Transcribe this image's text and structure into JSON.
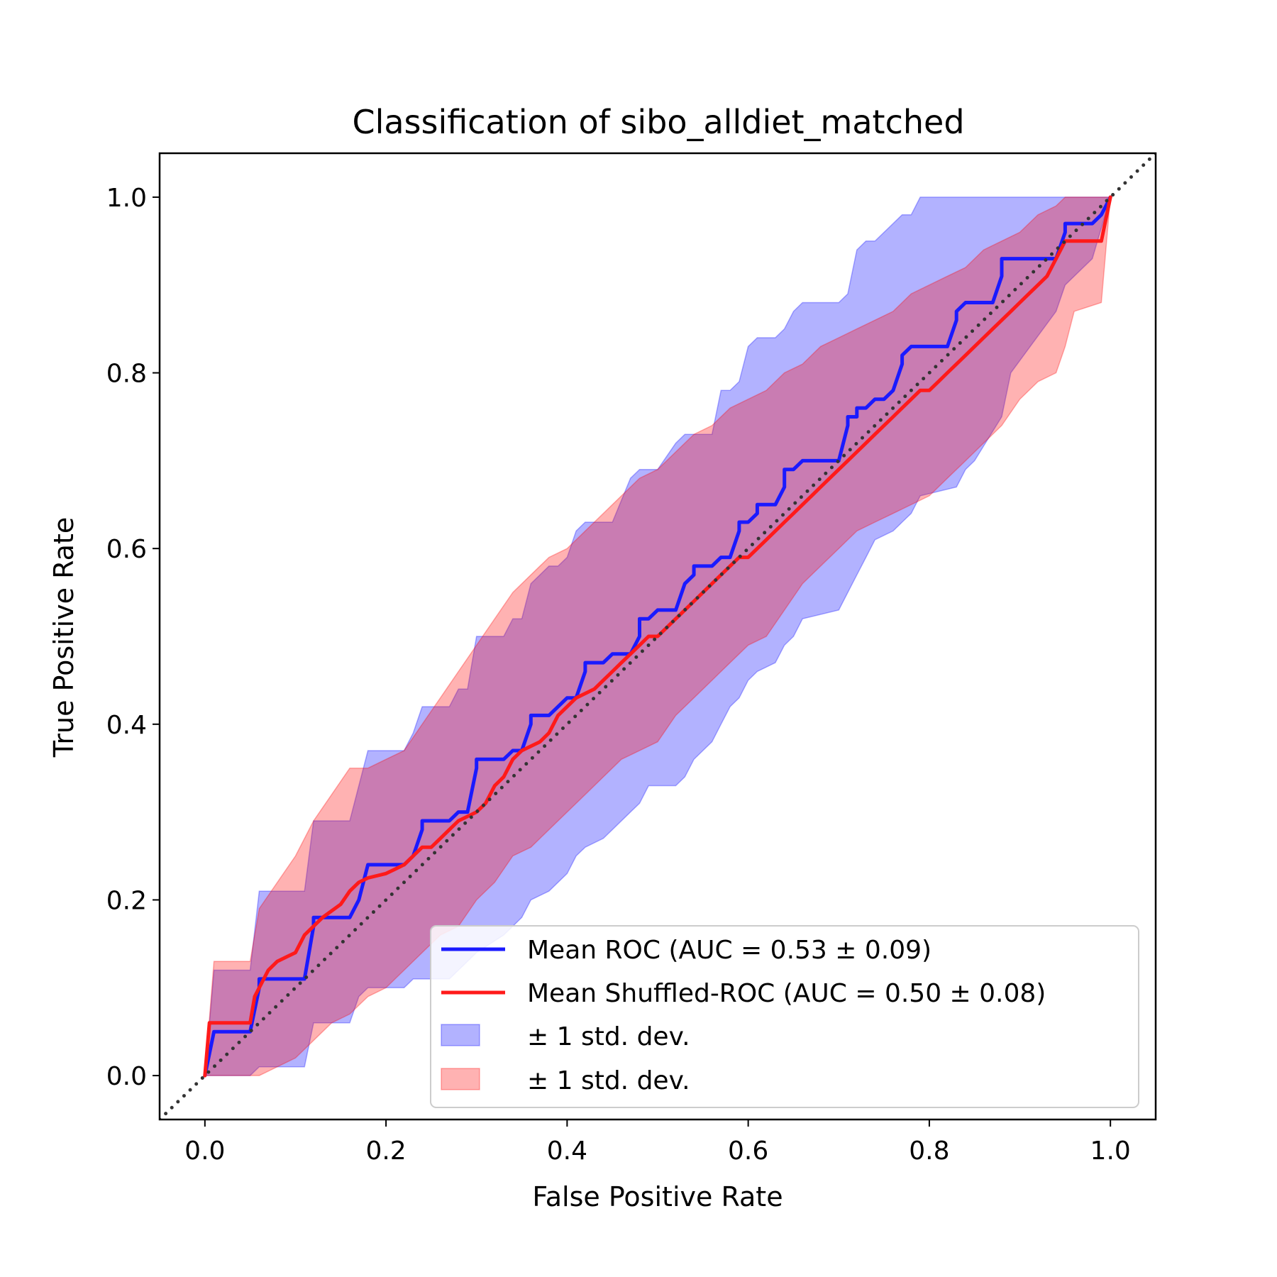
{
  "chart_data": {
    "type": "line",
    "title": "Classification of sibo_alldiet_matched",
    "xlabel": "False Positive Rate",
    "ylabel": "True Positive Rate",
    "xlim": [
      -0.05,
      1.05
    ],
    "ylim": [
      -0.05,
      1.05
    ],
    "xticks": [
      0.0,
      0.2,
      0.4,
      0.6,
      0.8,
      1.0
    ],
    "yticks": [
      0.0,
      0.2,
      0.4,
      0.6,
      0.8,
      1.0
    ],
    "xtick_labels": [
      "0.0",
      "0.2",
      "0.4",
      "0.6",
      "0.8",
      "1.0"
    ],
    "ytick_labels": [
      "0.0",
      "0.2",
      "0.4",
      "0.6",
      "0.8",
      "1.0"
    ],
    "grid": false,
    "legend_position": "lower-right",
    "series": [
      {
        "name": "Mean ROC (AUC = 0.53 ± 0.09)",
        "color": "#1a1aff",
        "x": [
          0,
          0.01,
          0.012,
          0.05,
          0.06,
          0.06,
          0.11,
          0.12,
          0.12,
          0.16,
          0.17,
          0.18,
          0.18,
          0.22,
          0.23,
          0.24,
          0.24,
          0.27,
          0.28,
          0.29,
          0.3,
          0.3,
          0.33,
          0.34,
          0.35,
          0.36,
          0.36,
          0.38,
          0.39,
          0.4,
          0.41,
          0.42,
          0.42,
          0.44,
          0.45,
          0.47,
          0.48,
          0.48,
          0.49,
          0.5,
          0.5,
          0.52,
          0.53,
          0.54,
          0.54,
          0.56,
          0.57,
          0.58,
          0.59,
          0.59,
          0.6,
          0.61,
          0.61,
          0.63,
          0.64,
          0.64,
          0.65,
          0.66,
          0.66,
          0.67,
          0.68,
          0.7,
          0.71,
          0.71,
          0.72,
          0.72,
          0.73,
          0.74,
          0.75,
          0.76,
          0.77,
          0.77,
          0.78,
          0.79,
          0.81,
          0.82,
          0.83,
          0.83,
          0.84,
          0.85,
          0.87,
          0.88,
          0.88,
          0.89,
          0.94,
          0.95,
          0.95,
          0.98,
          0.99,
          1.0
        ],
        "y": [
          0,
          0.05,
          0.05,
          0.05,
          0.1,
          0.11,
          0.11,
          0.17,
          0.18,
          0.18,
          0.2,
          0.24,
          0.24,
          0.24,
          0.25,
          0.28,
          0.29,
          0.29,
          0.3,
          0.3,
          0.35,
          0.36,
          0.36,
          0.37,
          0.37,
          0.4,
          0.41,
          0.41,
          0.42,
          0.43,
          0.43,
          0.46,
          0.47,
          0.47,
          0.48,
          0.48,
          0.5,
          0.52,
          0.52,
          0.53,
          0.53,
          0.53,
          0.56,
          0.57,
          0.58,
          0.58,
          0.59,
          0.59,
          0.62,
          0.63,
          0.63,
          0.64,
          0.65,
          0.65,
          0.67,
          0.69,
          0.69,
          0.7,
          0.7,
          0.7,
          0.7,
          0.7,
          0.74,
          0.75,
          0.75,
          0.76,
          0.76,
          0.77,
          0.77,
          0.78,
          0.81,
          0.82,
          0.83,
          0.83,
          0.83,
          0.83,
          0.86,
          0.87,
          0.88,
          0.88,
          0.88,
          0.91,
          0.93,
          0.93,
          0.93,
          0.96,
          0.97,
          0.97,
          0.98,
          1.0
        ]
      },
      {
        "name": "Mean Shuffled-ROC (AUC = 0.50 ± 0.08)",
        "color": "#ff1a1a",
        "x": [
          0,
          0.005,
          0.01,
          0.05,
          0.055,
          0.06,
          0.065,
          0.07,
          0.08,
          0.09,
          0.1,
          0.11,
          0.12,
          0.13,
          0.15,
          0.16,
          0.17,
          0.18,
          0.2,
          0.21,
          0.22,
          0.24,
          0.25,
          0.26,
          0.27,
          0.28,
          0.3,
          0.31,
          0.32,
          0.33,
          0.34,
          0.35,
          0.37,
          0.38,
          0.39,
          0.4,
          0.41,
          0.43,
          0.44,
          0.45,
          0.46,
          0.47,
          0.48,
          0.49,
          0.5,
          0.51,
          0.52,
          0.53,
          0.54,
          0.55,
          0.56,
          0.57,
          0.58,
          0.59,
          0.6,
          0.61,
          0.62,
          0.63,
          0.64,
          0.65,
          0.66,
          0.67,
          0.68,
          0.69,
          0.7,
          0.71,
          0.72,
          0.73,
          0.74,
          0.75,
          0.76,
          0.77,
          0.78,
          0.79,
          0.8,
          0.81,
          0.82,
          0.83,
          0.84,
          0.85,
          0.86,
          0.87,
          0.88,
          0.89,
          0.9,
          0.91,
          0.92,
          0.93,
          0.94,
          0.95,
          0.96,
          0.97,
          0.99,
          1.0
        ],
        "y": [
          0,
          0.06,
          0.06,
          0.06,
          0.09,
          0.1,
          0.11,
          0.12,
          0.13,
          0.135,
          0.14,
          0.16,
          0.17,
          0.18,
          0.195,
          0.21,
          0.22,
          0.225,
          0.23,
          0.235,
          0.24,
          0.26,
          0.26,
          0.27,
          0.28,
          0.29,
          0.3,
          0.31,
          0.33,
          0.34,
          0.36,
          0.37,
          0.38,
          0.39,
          0.41,
          0.42,
          0.43,
          0.44,
          0.45,
          0.46,
          0.47,
          0.48,
          0.49,
          0.5,
          0.5,
          0.51,
          0.52,
          0.53,
          0.54,
          0.55,
          0.56,
          0.57,
          0.58,
          0.59,
          0.59,
          0.6,
          0.61,
          0.62,
          0.63,
          0.64,
          0.65,
          0.66,
          0.67,
          0.68,
          0.69,
          0.7,
          0.71,
          0.72,
          0.73,
          0.74,
          0.75,
          0.76,
          0.77,
          0.78,
          0.78,
          0.79,
          0.8,
          0.81,
          0.82,
          0.83,
          0.84,
          0.85,
          0.86,
          0.87,
          0.88,
          0.89,
          0.9,
          0.91,
          0.93,
          0.95,
          0.95,
          0.95,
          0.95,
          1.0
        ]
      }
    ],
    "bands": [
      {
        "name": "± 1 std. dev.",
        "color": "#0000ff",
        "x": [
          0,
          0.01,
          0.05,
          0.06,
          0.11,
          0.12,
          0.16,
          0.17,
          0.18,
          0.22,
          0.23,
          0.24,
          0.27,
          0.28,
          0.29,
          0.3,
          0.33,
          0.34,
          0.35,
          0.36,
          0.38,
          0.39,
          0.4,
          0.41,
          0.42,
          0.44,
          0.45,
          0.47,
          0.48,
          0.49,
          0.5,
          0.52,
          0.53,
          0.54,
          0.56,
          0.57,
          0.58,
          0.59,
          0.6,
          0.61,
          0.63,
          0.64,
          0.65,
          0.66,
          0.7,
          0.71,
          0.72,
          0.73,
          0.74,
          0.76,
          0.77,
          0.78,
          0.79,
          0.83,
          0.84,
          0.85,
          0.88,
          0.89,
          0.94,
          0.95,
          0.98,
          1.0
        ],
        "lower": [
          0,
          0,
          0,
          0.01,
          0.01,
          0.06,
          0.06,
          0.09,
          0.1,
          0.1,
          0.11,
          0.11,
          0.11,
          0.12,
          0.13,
          0.14,
          0.16,
          0.17,
          0.18,
          0.2,
          0.21,
          0.22,
          0.23,
          0.25,
          0.26,
          0.27,
          0.28,
          0.3,
          0.31,
          0.33,
          0.33,
          0.33,
          0.34,
          0.36,
          0.38,
          0.4,
          0.42,
          0.43,
          0.45,
          0.46,
          0.47,
          0.49,
          0.5,
          0.52,
          0.53,
          0.55,
          0.57,
          0.59,
          0.61,
          0.62,
          0.63,
          0.64,
          0.66,
          0.67,
          0.69,
          0.7,
          0.75,
          0.8,
          0.87,
          0.9,
          0.93,
          1.0
        ],
        "upper": [
          0,
          0.12,
          0.12,
          0.21,
          0.21,
          0.29,
          0.29,
          0.33,
          0.37,
          0.37,
          0.39,
          0.42,
          0.42,
          0.44,
          0.44,
          0.5,
          0.5,
          0.52,
          0.52,
          0.56,
          0.58,
          0.58,
          0.59,
          0.62,
          0.63,
          0.63,
          0.63,
          0.68,
          0.69,
          0.69,
          0.69,
          0.72,
          0.73,
          0.73,
          0.73,
          0.78,
          0.78,
          0.79,
          0.83,
          0.84,
          0.84,
          0.85,
          0.87,
          0.88,
          0.88,
          0.89,
          0.94,
          0.95,
          0.95,
          0.97,
          0.98,
          0.98,
          1.0,
          1.0,
          1.0,
          1.0,
          1.0,
          1.0,
          1.0,
          1.0,
          1.0,
          1.0
        ]
      },
      {
        "name": "± 1 std. dev.",
        "color": "#ff0000",
        "x": [
          0,
          0.01,
          0.05,
          0.06,
          0.08,
          0.1,
          0.12,
          0.14,
          0.16,
          0.17,
          0.18,
          0.2,
          0.22,
          0.24,
          0.26,
          0.28,
          0.3,
          0.32,
          0.34,
          0.36,
          0.38,
          0.4,
          0.42,
          0.44,
          0.46,
          0.48,
          0.5,
          0.52,
          0.54,
          0.56,
          0.58,
          0.6,
          0.62,
          0.64,
          0.66,
          0.68,
          0.7,
          0.72,
          0.74,
          0.76,
          0.78,
          0.8,
          0.82,
          0.84,
          0.86,
          0.88,
          0.9,
          0.92,
          0.94,
          0.95,
          0.96,
          0.99,
          1.0
        ],
        "lower": [
          0,
          0,
          0,
          0,
          0.01,
          0.02,
          0.04,
          0.06,
          0.07,
          0.08,
          0.09,
          0.1,
          0.12,
          0.14,
          0.16,
          0.17,
          0.2,
          0.22,
          0.25,
          0.26,
          0.28,
          0.3,
          0.32,
          0.34,
          0.36,
          0.37,
          0.38,
          0.41,
          0.43,
          0.45,
          0.47,
          0.49,
          0.5,
          0.53,
          0.56,
          0.58,
          0.6,
          0.62,
          0.63,
          0.64,
          0.65,
          0.66,
          0.68,
          0.7,
          0.72,
          0.74,
          0.77,
          0.79,
          0.8,
          0.83,
          0.87,
          0.88,
          1.0
        ],
        "upper": [
          0,
          0.13,
          0.13,
          0.19,
          0.22,
          0.25,
          0.29,
          0.32,
          0.35,
          0.35,
          0.35,
          0.36,
          0.37,
          0.4,
          0.43,
          0.46,
          0.49,
          0.52,
          0.55,
          0.57,
          0.59,
          0.6,
          0.62,
          0.64,
          0.66,
          0.68,
          0.69,
          0.71,
          0.73,
          0.74,
          0.76,
          0.77,
          0.78,
          0.8,
          0.81,
          0.83,
          0.84,
          0.85,
          0.86,
          0.87,
          0.89,
          0.9,
          0.91,
          0.92,
          0.94,
          0.95,
          0.96,
          0.98,
          0.99,
          1.0,
          1.0,
          1.0,
          1.0
        ]
      }
    ],
    "reference_line": {
      "style": "dotted",
      "color": "#333333",
      "x": [
        -0.05,
        1.05
      ],
      "y": [
        -0.05,
        1.05
      ]
    }
  }
}
